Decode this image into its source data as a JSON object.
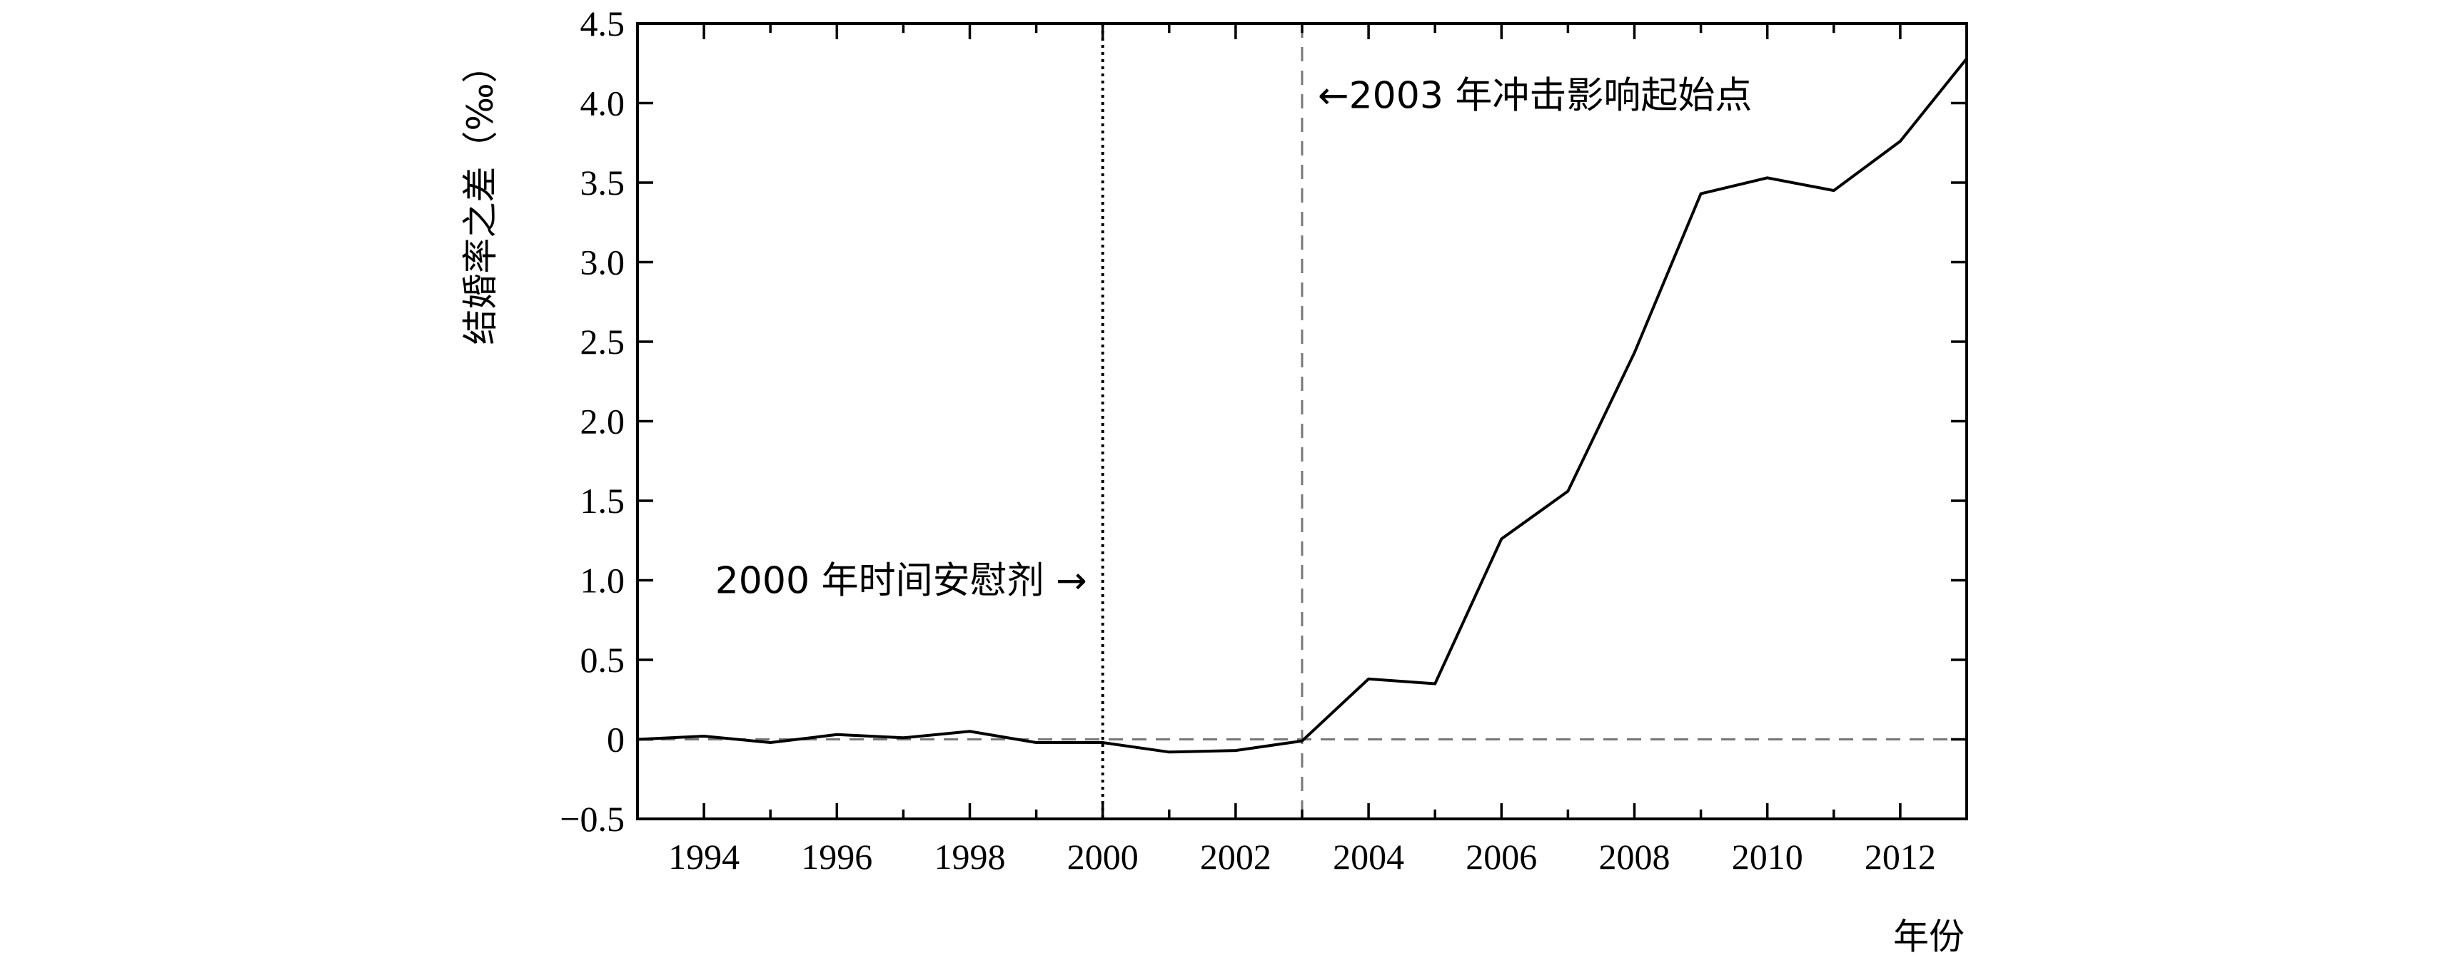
{
  "chart_data": {
    "type": "line",
    "title": "",
    "xlabel": "年份",
    "ylabel": "结婚率之差（‰）",
    "xlim": [
      1993,
      2013
    ],
    "ylim": [
      -0.5,
      4.5
    ],
    "x_ticks": [
      1994,
      1996,
      1998,
      2000,
      2002,
      2004,
      2006,
      2008,
      2010,
      2012
    ],
    "x_minor_ticks": [
      1995,
      1997,
      1999,
      2001,
      2003,
      2005,
      2007,
      2009,
      2011
    ],
    "y_ticks": [
      -0.5,
      0,
      0.5,
      1.0,
      1.5,
      2.0,
      2.5,
      3.0,
      3.5,
      4.0,
      4.5
    ],
    "y_tick_labels": [
      "−0.5",
      "0",
      "0.5",
      "1.0",
      "1.5",
      "2.0",
      "2.5",
      "3.0",
      "3.5",
      "4.0",
      "4.5"
    ],
    "grid": false,
    "series": [
      {
        "x": [
          1993,
          1994,
          1995,
          1996,
          1997,
          1998,
          1999,
          2000,
          2001,
          2002,
          2003,
          2004,
          2005,
          2006,
          2007,
          2008,
          2009,
          2010,
          2011,
          2012,
          2013
        ],
        "values": [
          0.0,
          0.02,
          -0.02,
          0.03,
          0.01,
          0.05,
          -0.02,
          -0.02,
          -0.08,
          -0.07,
          -0.01,
          0.38,
          0.35,
          1.26,
          1.56,
          2.43,
          3.43,
          3.53,
          3.45,
          3.76,
          4.28
        ],
        "color": "#000000"
      }
    ],
    "reference_lines": [
      {
        "orientation": "horizontal",
        "value": 0,
        "style": "dashed",
        "color": "#777777"
      },
      {
        "orientation": "vertical",
        "value": 2000,
        "style": "dotted",
        "color": "#000000"
      },
      {
        "orientation": "vertical",
        "value": 2003,
        "style": "dashed",
        "color": "#777777"
      }
    ],
    "annotations": [
      {
        "text": "2000 年时间安慰剂 →",
        "x": 2000,
        "y": 1.0
      },
      {
        "text": "←2003 年冲击影响起始点",
        "x": 2003,
        "y": 4.05
      }
    ]
  }
}
